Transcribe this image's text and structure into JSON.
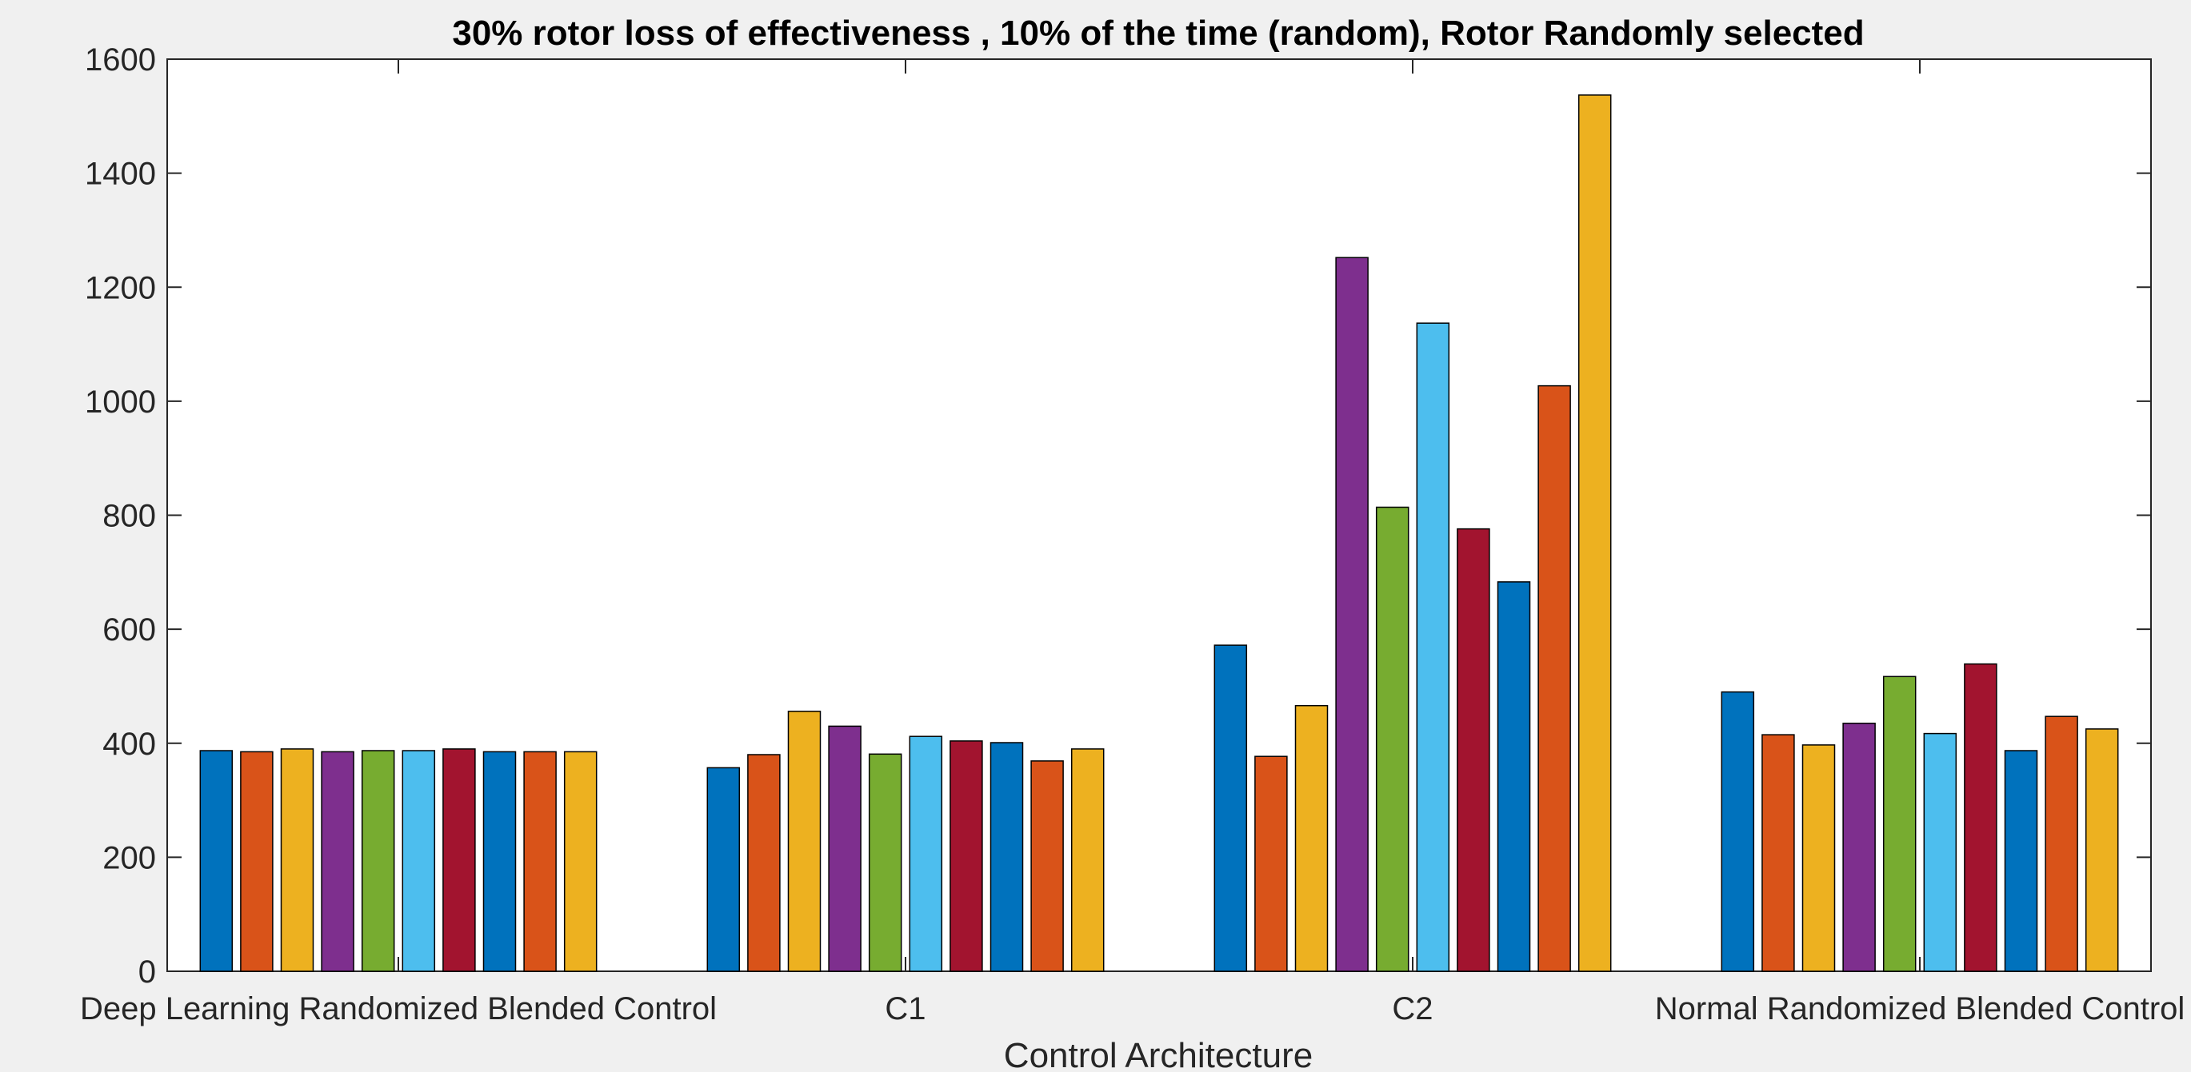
{
  "chart_data": {
    "type": "bar",
    "title": "30% rotor loss of effectiveness , 10% of the time (random), Rotor Randomly selected",
    "xlabel": "Control Architecture",
    "ylabel": "",
    "ylim": [
      0,
      1600
    ],
    "yticks": [
      "0",
      "200",
      "400",
      "600",
      "800",
      "1000",
      "1200",
      "1400",
      "1600"
    ],
    "categories": [
      "Deep Learning Randomized Blended Control",
      "C1",
      "C2",
      "Normal Randomized Blended Control"
    ],
    "series": [
      {
        "color": "#0072bd",
        "values": [
          387,
          357,
          572,
          490
        ]
      },
      {
        "color": "#d95319",
        "values": [
          385,
          380,
          377,
          415
        ]
      },
      {
        "color": "#edb120",
        "values": [
          390,
          456,
          466,
          397
        ]
      },
      {
        "color": "#7e2f8e",
        "values": [
          385,
          430,
          1252,
          435
        ]
      },
      {
        "color": "#77ac30",
        "values": [
          387,
          381,
          814,
          517
        ]
      },
      {
        "color": "#4dbeee",
        "values": [
          387,
          412,
          1137,
          417
        ]
      },
      {
        "color": "#a2142f",
        "values": [
          390,
          404,
          776,
          539
        ]
      },
      {
        "color": "#0072bd",
        "values": [
          385,
          401,
          683,
          387
        ]
      },
      {
        "color": "#d95319",
        "values": [
          385,
          369,
          1027,
          447
        ]
      },
      {
        "color": "#edb120",
        "values": [
          385,
          390,
          1537,
          425
        ]
      }
    ],
    "grid": false,
    "legend": "none"
  }
}
